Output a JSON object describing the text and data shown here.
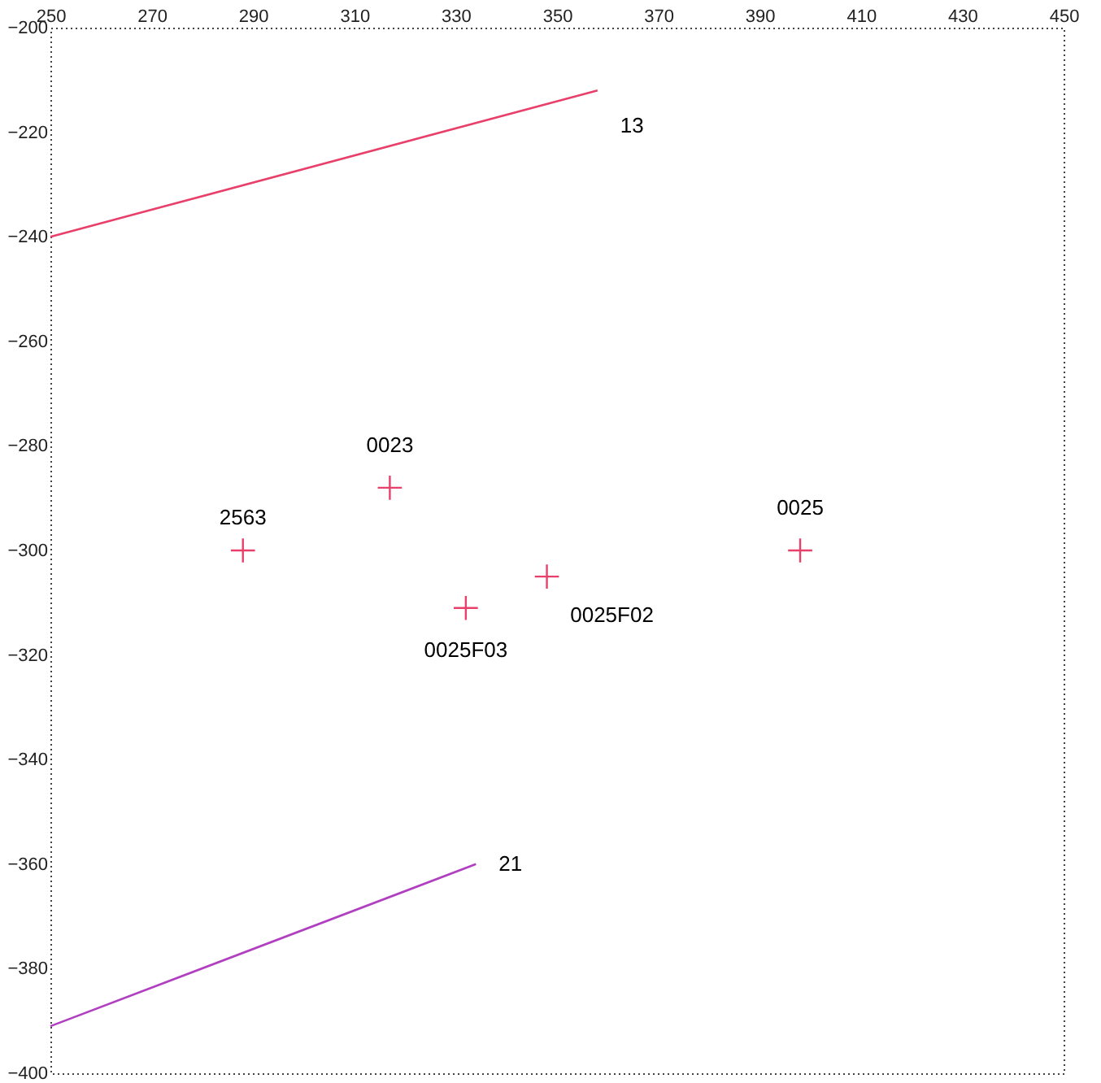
{
  "chart_data": {
    "type": "scatter",
    "xlim": [
      250,
      450
    ],
    "xticks": [
      250,
      270,
      290,
      310,
      330,
      350,
      370,
      390,
      410,
      430,
      450
    ],
    "ylim": [
      -400,
      -200
    ],
    "yticks": [
      -400,
      -380,
      -360,
      -340,
      -320,
      -300,
      -280,
      -260,
      -240,
      -220,
      -200
    ],
    "grid": false,
    "marker": "cross",
    "series": [
      {
        "name": "13",
        "type": "line",
        "marker": "none",
        "color": "#e8406a",
        "x": [
          250,
          358
        ],
        "values": [
          -240,
          -212
        ]
      },
      {
        "name": "21",
        "type": "line",
        "marker": "none",
        "color": "#b040c0",
        "x": [
          250,
          334
        ],
        "values": [
          -391,
          -360
        ]
      },
      {
        "color": "#e8406a",
        "x": [
          288,
          317,
          332,
          348,
          398
        ],
        "values": [
          -300,
          -288,
          -311,
          -305,
          -300
        ]
      }
    ],
    "annotations": [
      {
        "text": "2563",
        "x": 288,
        "y": -300
      },
      {
        "text": "0023",
        "x": 317,
        "y": -288
      },
      {
        "text": "0025F03",
        "x": 332,
        "y": -311
      },
      {
        "text": "0025F02",
        "x": 348,
        "y": -305
      },
      {
        "text": "0025",
        "x": 398,
        "y": -300
      }
    ]
  }
}
